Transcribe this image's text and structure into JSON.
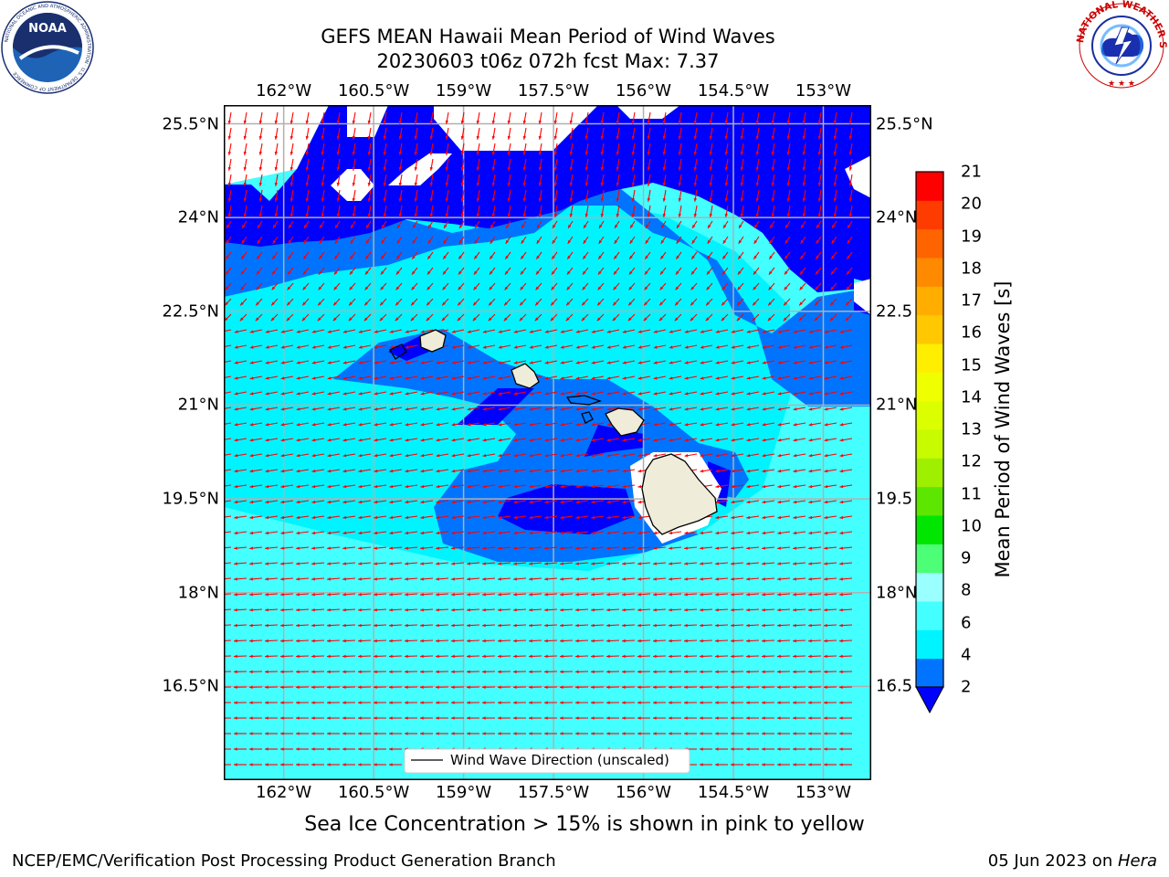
{
  "title": {
    "line1": "GEFS MEAN Hawaii Mean Period of Wind Waves",
    "line2": "20230603 t06z 072h fcst   Max: 7.37"
  },
  "map": {
    "lon_range": [
      -163.0,
      -152.2
    ],
    "lat_range": [
      15.0,
      25.8
    ],
    "lon_ticks": [
      -162,
      -160.5,
      -159,
      -157.5,
      -156,
      -154.5,
      -153
    ],
    "lon_tick_labels": [
      "162°W",
      "160.5°W",
      "159°W",
      "157.5°W",
      "156°W",
      "154.5°W",
      "153°W"
    ],
    "lat_ticks": [
      25.5,
      24,
      22.5,
      21,
      19.5,
      18,
      16.5
    ],
    "lat_tick_labels": [
      "25.5°N",
      "24°N",
      "22.5°N",
      "21°N",
      "19.5°N",
      "18°N",
      "16.5°N"
    ],
    "right_lat_tick_labels": [
      "25.5°N",
      "24°N",
      "22.5",
      "21°N",
      "19.5",
      "18°N",
      "16.5"
    ],
    "grid": true,
    "colors": {
      "period_2_4": "#0074ff",
      "period_4_6": "#00f4ff",
      "period_6_8": "#44ffff",
      "period_lt_2": "#0000ff",
      "land": "#efedda",
      "arrow": "#ff0000",
      "grid": "#b0b0b0"
    },
    "legend": {
      "label": "Wind Wave Direction (unscaled)",
      "placement": "lower-center"
    }
  },
  "colorbar": {
    "label": "Mean Period of Wind Waves [s]",
    "min": 2,
    "max": 21,
    "ticks": [
      "21",
      "20",
      "19",
      "18",
      "17",
      "16",
      "15",
      "14",
      "13",
      "12",
      "11",
      "10",
      "9",
      "8",
      "6",
      "4",
      "2"
    ],
    "colors": [
      "#0074ff",
      "#00f4ff",
      "#44ffff",
      "#9affff",
      "#4cff76",
      "#00e600",
      "#5ce600",
      "#9fef00",
      "#c8fa00",
      "#dcff00",
      "#f0ff00",
      "#ffee00",
      "#ffc800",
      "#ffae00",
      "#ff8a00",
      "#ff6400",
      "#ff3c00",
      "#ff0000"
    ],
    "extend_min_color": "#0000ff"
  },
  "note": "Sea Ice Concentration > 15% is shown in pink to yellow",
  "footer": {
    "left": "NCEP/EMC/Verification Post Processing Product Generation Branch",
    "date": "05 Jun 2023 on ",
    "host": "Hera"
  },
  "logos": {
    "noaa_text": "NOAA",
    "noaa_ring_text": "NATIONAL OCEANIC AND ATMOSPHERIC ADMINISTRATION · U.S. DEPARTMENT OF COMMERCE",
    "nws_ring_text": "NATIONAL WEATHER SERVICE"
  }
}
